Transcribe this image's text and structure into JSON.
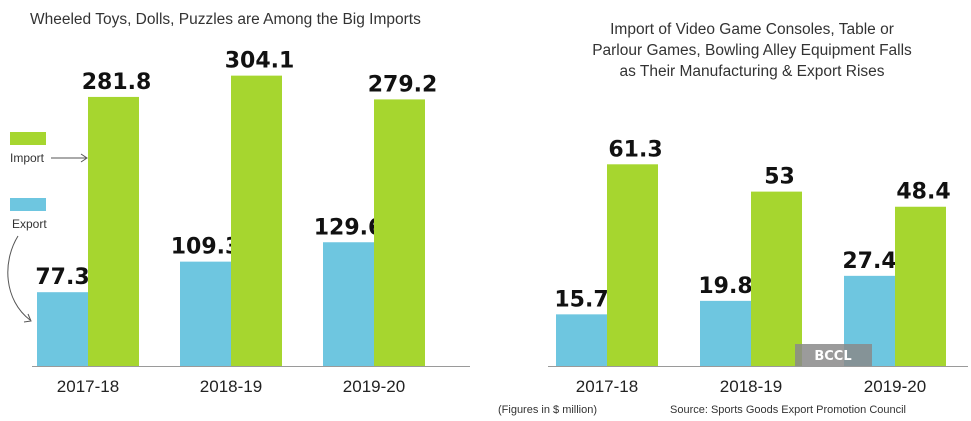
{
  "chart_data": [
    {
      "type": "bar",
      "title": "Wheeled Toys, Dolls, Puzzles are Among the Big Imports",
      "categories": [
        "2017-18",
        "2018-19",
        "2019-20"
      ],
      "series": [
        {
          "name": "Export",
          "values": [
            77.3,
            109.3,
            129.6
          ],
          "labels": [
            "77.3",
            "109.3",
            "129.6"
          ],
          "color": "#6ec6e0"
        },
        {
          "name": "Import",
          "values": [
            281.8,
            304.1,
            279.2
          ],
          "labels": [
            "281.8",
            "304.1",
            "279.2"
          ],
          "color": "#a6d62f"
        }
      ],
      "ylim": [
        0,
        310
      ],
      "legend": {
        "position": "left",
        "items": [
          "Import",
          "Export"
        ]
      }
    },
    {
      "type": "bar",
      "title": "Import of Video Game Consoles, Table or Parlour Games, Bowling Alley Equipment Falls as Their Manufacturing & Export Rises",
      "title_lines": [
        "Import of Video Game Consoles, Table or",
        "Parlour Games, Bowling Alley Equipment Falls",
        "as Their Manufacturing & Export Rises"
      ],
      "categories": [
        "2017-18",
        "2018-19",
        "2019-20"
      ],
      "series": [
        {
          "name": "Export",
          "values": [
            15.7,
            19.8,
            27.4
          ],
          "labels": [
            "15.7",
            "19.8",
            "27.4"
          ],
          "color": "#6ec6e0"
        },
        {
          "name": "Import",
          "values": [
            61.3,
            53,
            48.4
          ],
          "labels": [
            "61.3",
            "53",
            "48.4"
          ],
          "color": "#a6d62f"
        }
      ],
      "ylim": [
        0,
        62
      ]
    }
  ],
  "footer": {
    "units_note": "(Figures in $ million)",
    "source": "Source: Sports Goods Export Promotion Council"
  },
  "watermark": "BCCL",
  "colors": {
    "export": "#6ec6e0",
    "import": "#a6d62f",
    "axis": "#9a9a9a"
  }
}
